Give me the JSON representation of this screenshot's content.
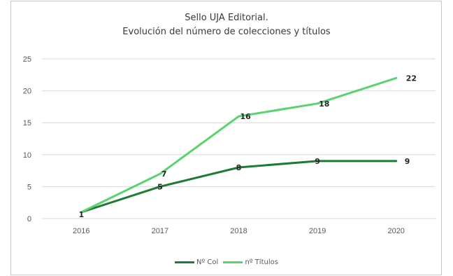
{
  "chart_data": {
    "type": "line",
    "title_lines": [
      "Sello UJA Editorial.",
      "Evolución del número de colecciones y títulos"
    ],
    "categories": [
      "2016",
      "2017",
      "2018",
      "2019",
      "2020"
    ],
    "y_ticks": [
      "0",
      "5",
      "10",
      "15",
      "20",
      "25"
    ],
    "ylim": [
      0,
      25
    ],
    "grid": true,
    "legend_position": "bottom",
    "series": [
      {
        "name": "Nº Col",
        "color": "#1e7b34",
        "values": [
          1,
          5,
          8,
          9,
          9
        ],
        "labels": [
          "1",
          "5",
          "8",
          "9",
          "9"
        ]
      },
      {
        "name": "nº Títulos",
        "color": "#5ad36f",
        "values": [
          1,
          7,
          16,
          18,
          22
        ],
        "labels": [
          "",
          "7",
          "16",
          "18",
          "22"
        ]
      }
    ]
  }
}
